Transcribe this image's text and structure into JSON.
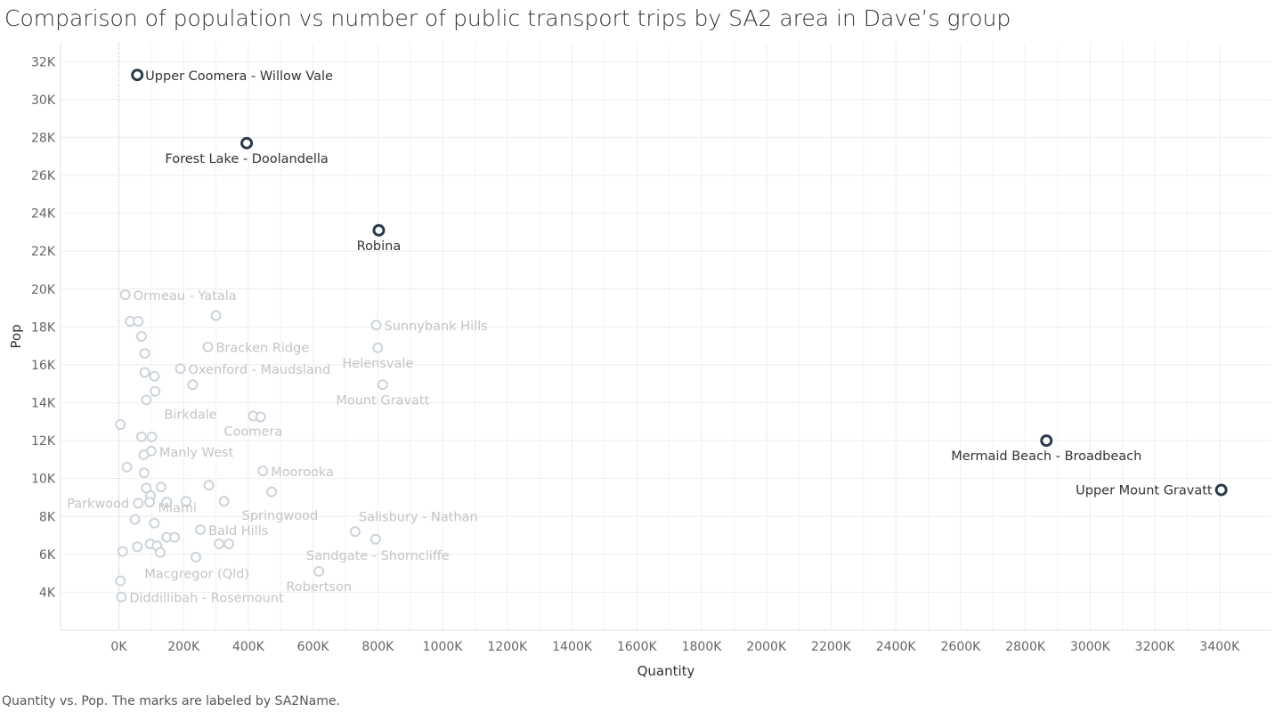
{
  "title": "Comparison of population vs number of public transport trips by SA2 area in Dave’s group",
  "caption": "Quantity vs. Pop.  The marks are labeled by SA2Name.",
  "colors": {
    "highlight": "#2b3a4e",
    "faded": "#ccd3dc",
    "faded_label": "#c4c4c4",
    "grid": "#eeeeee",
    "tick": "#666666"
  },
  "chart_data": {
    "type": "scatter",
    "xlabel": "Quantity",
    "ylabel": "Pop",
    "xlim": [
      -180000,
      3560000
    ],
    "ylim": [
      2000,
      33000
    ],
    "xticks": [
      0,
      200000,
      400000,
      600000,
      800000,
      1000000,
      1200000,
      1400000,
      1600000,
      1800000,
      2000000,
      2200000,
      2400000,
      2600000,
      2800000,
      3000000,
      3200000,
      3400000
    ],
    "xtick_labels": [
      "0K",
      "200K",
      "400K",
      "600K",
      "800K",
      "1000K",
      "1200K",
      "1400K",
      "1600K",
      "1800K",
      "2000K",
      "2200K",
      "2400K",
      "2600K",
      "2800K",
      "3000K",
      "3200K",
      "3400K"
    ],
    "yticks": [
      4000,
      6000,
      8000,
      10000,
      12000,
      14000,
      16000,
      18000,
      20000,
      22000,
      24000,
      26000,
      28000,
      30000,
      32000
    ],
    "ytick_labels": [
      "4K",
      "6K",
      "8K",
      "10K",
      "12K",
      "14K",
      "16K",
      "18K",
      "20K",
      "22K",
      "24K",
      "26K",
      "28K",
      "30K",
      "32K"
    ],
    "grid": true,
    "points": [
      {
        "x": 57000,
        "y": 31300,
        "label": "Upper Coomera - Willow Vale",
        "highlight": true,
        "pos": "right"
      },
      {
        "x": 395000,
        "y": 27700,
        "label": "Forest Lake - Doolandella",
        "highlight": true,
        "pos": "below"
      },
      {
        "x": 803000,
        "y": 23100,
        "label": "Robina",
        "highlight": true,
        "pos": "below"
      },
      {
        "x": 2865000,
        "y": 12000,
        "label": "Mermaid Beach - Broadbeach",
        "highlight": true,
        "pos": "below"
      },
      {
        "x": 3405000,
        "y": 9400,
        "label": "Upper Mount Gravatt",
        "highlight": true,
        "pos": "left"
      },
      {
        "x": 20000,
        "y": 19700,
        "label": "Ormeau - Yatala",
        "pos": "right"
      },
      {
        "x": 35000,
        "y": 18300,
        "label": ""
      },
      {
        "x": 60000,
        "y": 18300,
        "label": ""
      },
      {
        "x": 70000,
        "y": 17500,
        "label": ""
      },
      {
        "x": 300000,
        "y": 18600,
        "label": ""
      },
      {
        "x": 795000,
        "y": 18100,
        "label": "Sunnybank Hills",
        "pos": "right"
      },
      {
        "x": 275000,
        "y": 16950,
        "label": "Bracken Ridge",
        "pos": "right"
      },
      {
        "x": 80000,
        "y": 16600,
        "label": ""
      },
      {
        "x": 800000,
        "y": 16900,
        "label": "Helensvale",
        "pos": "below"
      },
      {
        "x": 190000,
        "y": 15800,
        "label": "Oxenford - Maudsland",
        "pos": "right"
      },
      {
        "x": 80000,
        "y": 15600,
        "label": ""
      },
      {
        "x": 110000,
        "y": 15400,
        "label": ""
      },
      {
        "x": 228000,
        "y": 14950,
        "label": ""
      },
      {
        "x": 815000,
        "y": 14950,
        "label": "Mount Gravatt",
        "pos": "below"
      },
      {
        "x": 112000,
        "y": 14600,
        "label": ""
      },
      {
        "x": 85000,
        "y": 14150,
        "label": "Birkdale",
        "pos": "below-right"
      },
      {
        "x": 5000,
        "y": 12850,
        "label": ""
      },
      {
        "x": 415000,
        "y": 13300,
        "label": "Coomera",
        "pos": "below"
      },
      {
        "x": 438000,
        "y": 13250,
        "label": ""
      },
      {
        "x": 70000,
        "y": 12200,
        "label": ""
      },
      {
        "x": 102000,
        "y": 12200,
        "label": ""
      },
      {
        "x": 100000,
        "y": 11450,
        "label": "Manly West",
        "pos": "right"
      },
      {
        "x": 77000,
        "y": 11250,
        "label": ""
      },
      {
        "x": 25000,
        "y": 10600,
        "label": ""
      },
      {
        "x": 78000,
        "y": 10300,
        "label": ""
      },
      {
        "x": 445000,
        "y": 10400,
        "label": "Moorooka",
        "pos": "right"
      },
      {
        "x": 85000,
        "y": 9500,
        "label": ""
      },
      {
        "x": 130000,
        "y": 9550,
        "label": ""
      },
      {
        "x": 278000,
        "y": 9650,
        "label": ""
      },
      {
        "x": 472000,
        "y": 9300,
        "label": ""
      },
      {
        "x": 98000,
        "y": 9100,
        "label": ""
      },
      {
        "x": 60000,
        "y": 8700,
        "label": "Parkwood",
        "pos": "left"
      },
      {
        "x": 95000,
        "y": 8750,
        "label": ""
      },
      {
        "x": 148000,
        "y": 8750,
        "label": ""
      },
      {
        "x": 208000,
        "y": 8800,
        "label": ""
      },
      {
        "x": 325000,
        "y": 8800,
        "label": "Springwood",
        "pos": "below-right"
      },
      {
        "x": 50000,
        "y": 7850,
        "label": ""
      },
      {
        "x": 110000,
        "y": 7650,
        "label": "Miami",
        "pos": "above-right"
      },
      {
        "x": 252000,
        "y": 7300,
        "label": "Bald Hills",
        "pos": "right"
      },
      {
        "x": 730000,
        "y": 7200,
        "label": "Salisbury - Nathan",
        "pos": "above-right"
      },
      {
        "x": 793000,
        "y": 6800,
        "label": ""
      },
      {
        "x": 148000,
        "y": 6900,
        "label": ""
      },
      {
        "x": 172000,
        "y": 6900,
        "label": ""
      },
      {
        "x": 97000,
        "y": 6550,
        "label": ""
      },
      {
        "x": 118000,
        "y": 6450,
        "label": ""
      },
      {
        "x": 57000,
        "y": 6400,
        "label": ""
      },
      {
        "x": 310000,
        "y": 6550,
        "label": ""
      },
      {
        "x": 340000,
        "y": 6550,
        "label": ""
      },
      {
        "x": 12000,
        "y": 6150,
        "label": ""
      },
      {
        "x": 128000,
        "y": 6100,
        "label": ""
      },
      {
        "x": 238000,
        "y": 5850,
        "label": "Sandgate - Shorncliffe",
        "pos": "right-far"
      },
      {
        "x": 618000,
        "y": 5100,
        "label": "Robertson",
        "pos": "below"
      },
      {
        "x": 5000,
        "y": 4600,
        "label": "Macgregor (Qld)",
        "pos": "right-down"
      },
      {
        "x": 8000,
        "y": 3750,
        "label": "Diddillibah - Rosemount",
        "pos": "right"
      }
    ]
  }
}
